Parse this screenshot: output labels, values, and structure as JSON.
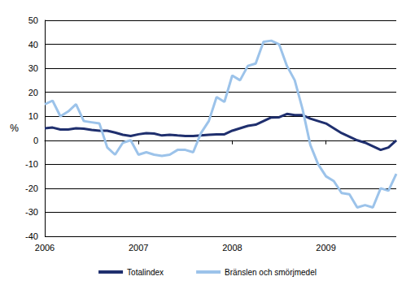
{
  "chart_data": {
    "type": "line",
    "categories": [
      "2006",
      null,
      null,
      null,
      null,
      null,
      null,
      null,
      null,
      null,
      null,
      null,
      "2007",
      null,
      null,
      null,
      null,
      null,
      null,
      null,
      null,
      null,
      null,
      null,
      "2008",
      null,
      null,
      null,
      null,
      null,
      null,
      null,
      null,
      null,
      null,
      null,
      "2009",
      null,
      null,
      null,
      null,
      null,
      null,
      null,
      null,
      null
    ],
    "series": [
      {
        "name": "Totalindex",
        "color": "#1f2f6e",
        "values": [
          5,
          5.3,
          4.5,
          4.5,
          5,
          4.8,
          4.3,
          4,
          4,
          3.2,
          2.3,
          1.8,
          2.5,
          3,
          2.8,
          2,
          2.3,
          2,
          1.8,
          1.8,
          2,
          2.3,
          2.5,
          2.5,
          4,
          5,
          6,
          6.5,
          8,
          9.5,
          9.6,
          11,
          10.5,
          10.5,
          9,
          8,
          7,
          5,
          3,
          1.5,
          0,
          -1,
          -2.5,
          -4,
          -3,
          0
        ]
      },
      {
        "name": "Bränslen och smörjmedel",
        "color": "#9cc3ea",
        "values": [
          15,
          16.5,
          10,
          12,
          15,
          8,
          7.5,
          7,
          -3,
          -6,
          -1,
          0,
          -6,
          -5,
          -6,
          -6.5,
          -6,
          -4,
          -4,
          -5,
          3,
          8,
          18,
          16,
          27,
          25,
          31,
          32,
          41,
          41.5,
          40,
          31,
          25,
          13,
          -2,
          -10,
          -15,
          -17,
          -22,
          -22.5,
          -28,
          -27,
          -28,
          -20,
          -21,
          -14
        ]
      }
    ],
    "y_label": "%",
    "ylim": [
      -40,
      50
    ],
    "yticks": [
      -40,
      -30,
      -20,
      -10,
      0,
      10,
      20,
      30,
      40,
      50
    ],
    "grid": true,
    "legend": "bottom"
  }
}
